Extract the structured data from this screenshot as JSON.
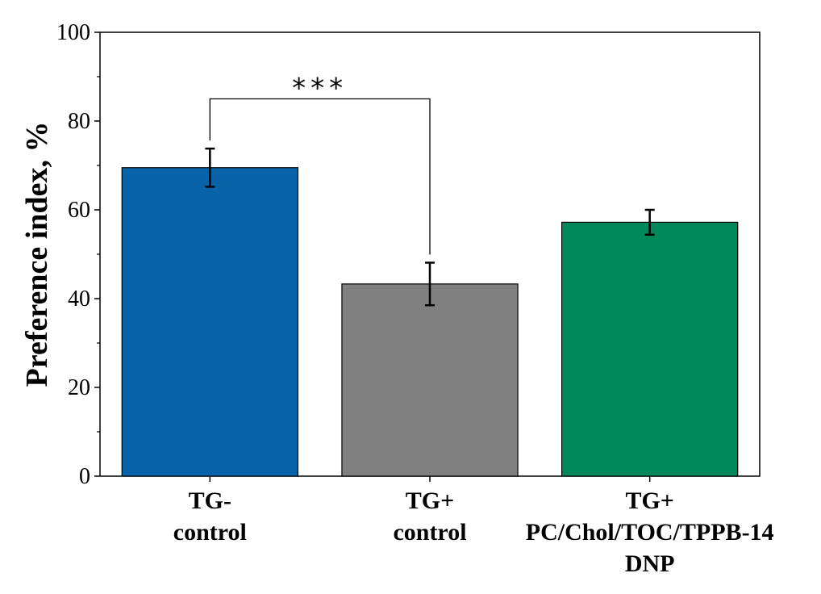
{
  "chart_data": {
    "type": "bar",
    "title": "",
    "xlabel": "",
    "ylabel": "Preference index, %",
    "ylim": [
      0,
      100
    ],
    "yticks": [
      0,
      20,
      40,
      60,
      80,
      100
    ],
    "ytick_labels": [
      "0",
      "20",
      "40",
      "60",
      "80",
      "100"
    ],
    "categories": [
      [
        "TG-",
        "control"
      ],
      [
        "TG+",
        "control"
      ],
      [
        "TG+",
        "PC/Chol/TOC/TPPB-14",
        "DNP"
      ]
    ],
    "values": [
      69.5,
      43.3,
      57.2
    ],
    "errors": [
      4.3,
      4.8,
      2.8
    ],
    "colors": [
      "#0863A9",
      "#808080",
      "#00875A"
    ],
    "significance": {
      "between": [
        0,
        1
      ],
      "label": "***",
      "y": 85
    }
  }
}
